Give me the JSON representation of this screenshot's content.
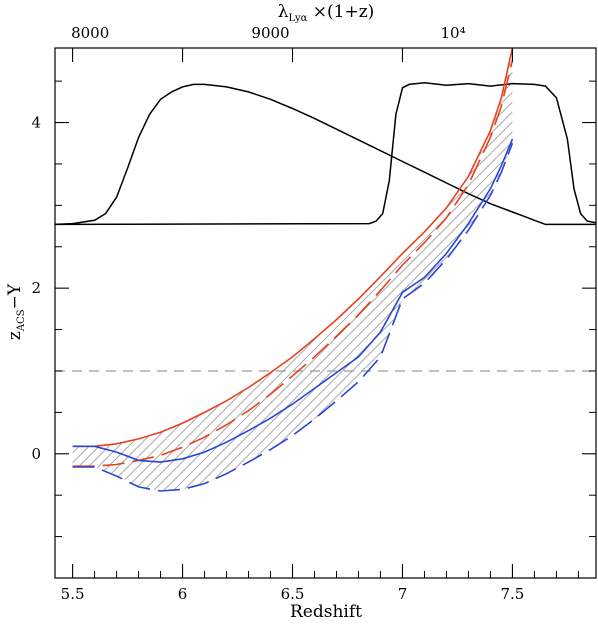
{
  "chart_data": {
    "type": "line",
    "xlabel": "Redshift",
    "ylabel_main": "z",
    "ylabel_sub": "ACS",
    "ylabel_suffix": "−Y",
    "top_label_main": "λ",
    "top_label_sub": "Lyα",
    "top_label_suffix": " ×(1+z)",
    "xlim": [
      5.42,
      7.88
    ],
    "ylim": [
      -1.5,
      4.9
    ],
    "x_ticks": [
      {
        "value": 5.5,
        "label": "5.5"
      },
      {
        "value": 6.0,
        "label": "6"
      },
      {
        "value": 6.5,
        "label": "6.5"
      },
      {
        "value": 7.0,
        "label": "7"
      },
      {
        "value": 7.5,
        "label": "7.5"
      }
    ],
    "y_ticks": [
      {
        "value": 0,
        "label": "0"
      },
      {
        "value": 2,
        "label": "2"
      },
      {
        "value": 4,
        "label": "4"
      }
    ],
    "top_ticks": [
      {
        "z": 5.58,
        "label": "8000"
      },
      {
        "z": 6.4,
        "label": "9000"
      },
      {
        "z": 7.23,
        "label": "10⁴"
      }
    ],
    "reference_line": {
      "y": 1.0,
      "color": "#9a9a9a"
    },
    "colors": {
      "red": "#e8401c",
      "blue": "#2a45d8",
      "hatch": "#a8a8a8",
      "filter": "#000000"
    },
    "series": [
      {
        "style": "solid",
        "color": "red",
        "x": [
          5.5,
          5.6,
          5.7,
          5.8,
          5.9,
          6.0,
          6.1,
          6.2,
          6.3,
          6.4,
          6.5,
          6.6,
          6.7,
          6.8,
          6.9,
          7.0,
          7.1,
          7.2,
          7.3,
          7.4,
          7.45,
          7.5
        ],
        "y": [
          0.09,
          0.09,
          0.12,
          0.18,
          0.26,
          0.37,
          0.5,
          0.64,
          0.8,
          0.98,
          1.17,
          1.39,
          1.62,
          1.87,
          2.14,
          2.42,
          2.68,
          2.97,
          3.35,
          3.9,
          4.3,
          4.9
        ]
      },
      {
        "style": "dashed",
        "color": "red",
        "x": [
          5.5,
          5.6,
          5.7,
          5.8,
          5.9,
          6.0,
          6.1,
          6.2,
          6.3,
          6.4,
          6.5,
          6.6,
          6.7,
          6.8,
          6.9,
          7.0,
          7.1,
          7.2,
          7.3,
          7.4,
          7.45,
          7.5
        ],
        "y": [
          -0.15,
          -0.15,
          -0.13,
          -0.08,
          -0.02,
          0.08,
          0.2,
          0.35,
          0.52,
          0.72,
          0.94,
          1.17,
          1.42,
          1.68,
          1.97,
          2.28,
          2.55,
          2.85,
          3.25,
          3.82,
          4.2,
          4.75
        ]
      },
      {
        "style": "solid",
        "color": "blue",
        "x": [
          5.5,
          5.6,
          5.7,
          5.8,
          5.9,
          6.0,
          6.1,
          6.2,
          6.3,
          6.4,
          6.5,
          6.6,
          6.7,
          6.8,
          6.9,
          7.0,
          7.1,
          7.2,
          7.3,
          7.4,
          7.45,
          7.5
        ],
        "y": [
          0.09,
          0.09,
          0.02,
          -0.08,
          -0.1,
          -0.06,
          0.02,
          0.14,
          0.28,
          0.43,
          0.6,
          0.79,
          0.98,
          1.17,
          1.47,
          1.95,
          2.13,
          2.42,
          2.78,
          3.2,
          3.48,
          3.8
        ]
      },
      {
        "style": "dashed",
        "color": "blue",
        "x": [
          5.5,
          5.6,
          5.7,
          5.8,
          5.9,
          6.0,
          6.1,
          6.2,
          6.3,
          6.4,
          6.5,
          6.6,
          6.7,
          6.8,
          6.9,
          7.0,
          7.1,
          7.2,
          7.3,
          7.4,
          7.45,
          7.5
        ],
        "y": [
          -0.16,
          -0.16,
          -0.27,
          -0.4,
          -0.45,
          -0.43,
          -0.36,
          -0.24,
          -0.1,
          0.05,
          0.22,
          0.42,
          0.64,
          0.87,
          1.17,
          1.87,
          2.06,
          2.35,
          2.7,
          3.12,
          3.4,
          3.75
        ]
      }
    ],
    "filter_curves": [
      {
        "name": "z-band",
        "baseline": 2.77,
        "x": [
          5.42,
          5.5,
          5.6,
          5.65,
          5.7,
          5.75,
          5.8,
          5.85,
          5.9,
          5.95,
          6.0,
          6.05,
          6.1,
          6.2,
          6.3,
          6.4,
          6.5,
          6.6,
          6.7,
          6.8,
          6.9,
          7.0,
          7.1,
          7.2,
          7.3,
          7.4,
          7.5,
          7.55,
          7.6,
          7.65,
          7.88
        ],
        "y": [
          2.77,
          2.78,
          2.82,
          2.9,
          3.1,
          3.45,
          3.82,
          4.1,
          4.28,
          4.37,
          4.43,
          4.46,
          4.46,
          4.43,
          4.37,
          4.28,
          4.17,
          4.05,
          3.92,
          3.79,
          3.66,
          3.53,
          3.4,
          3.27,
          3.14,
          3.02,
          2.92,
          2.87,
          2.82,
          2.77,
          2.77
        ]
      },
      {
        "name": "Y-band",
        "baseline": 2.77,
        "x": [
          5.42,
          6.85,
          6.88,
          6.91,
          6.94,
          6.97,
          7.0,
          7.03,
          7.1,
          7.2,
          7.3,
          7.4,
          7.5,
          7.6,
          7.65,
          7.7,
          7.75,
          7.78,
          7.81,
          7.84,
          7.88
        ],
        "y": [
          2.77,
          2.78,
          2.81,
          2.9,
          3.3,
          4.1,
          4.42,
          4.46,
          4.48,
          4.45,
          4.47,
          4.44,
          4.47,
          4.46,
          4.44,
          4.3,
          3.8,
          3.2,
          2.9,
          2.81,
          2.79
        ]
      }
    ]
  }
}
